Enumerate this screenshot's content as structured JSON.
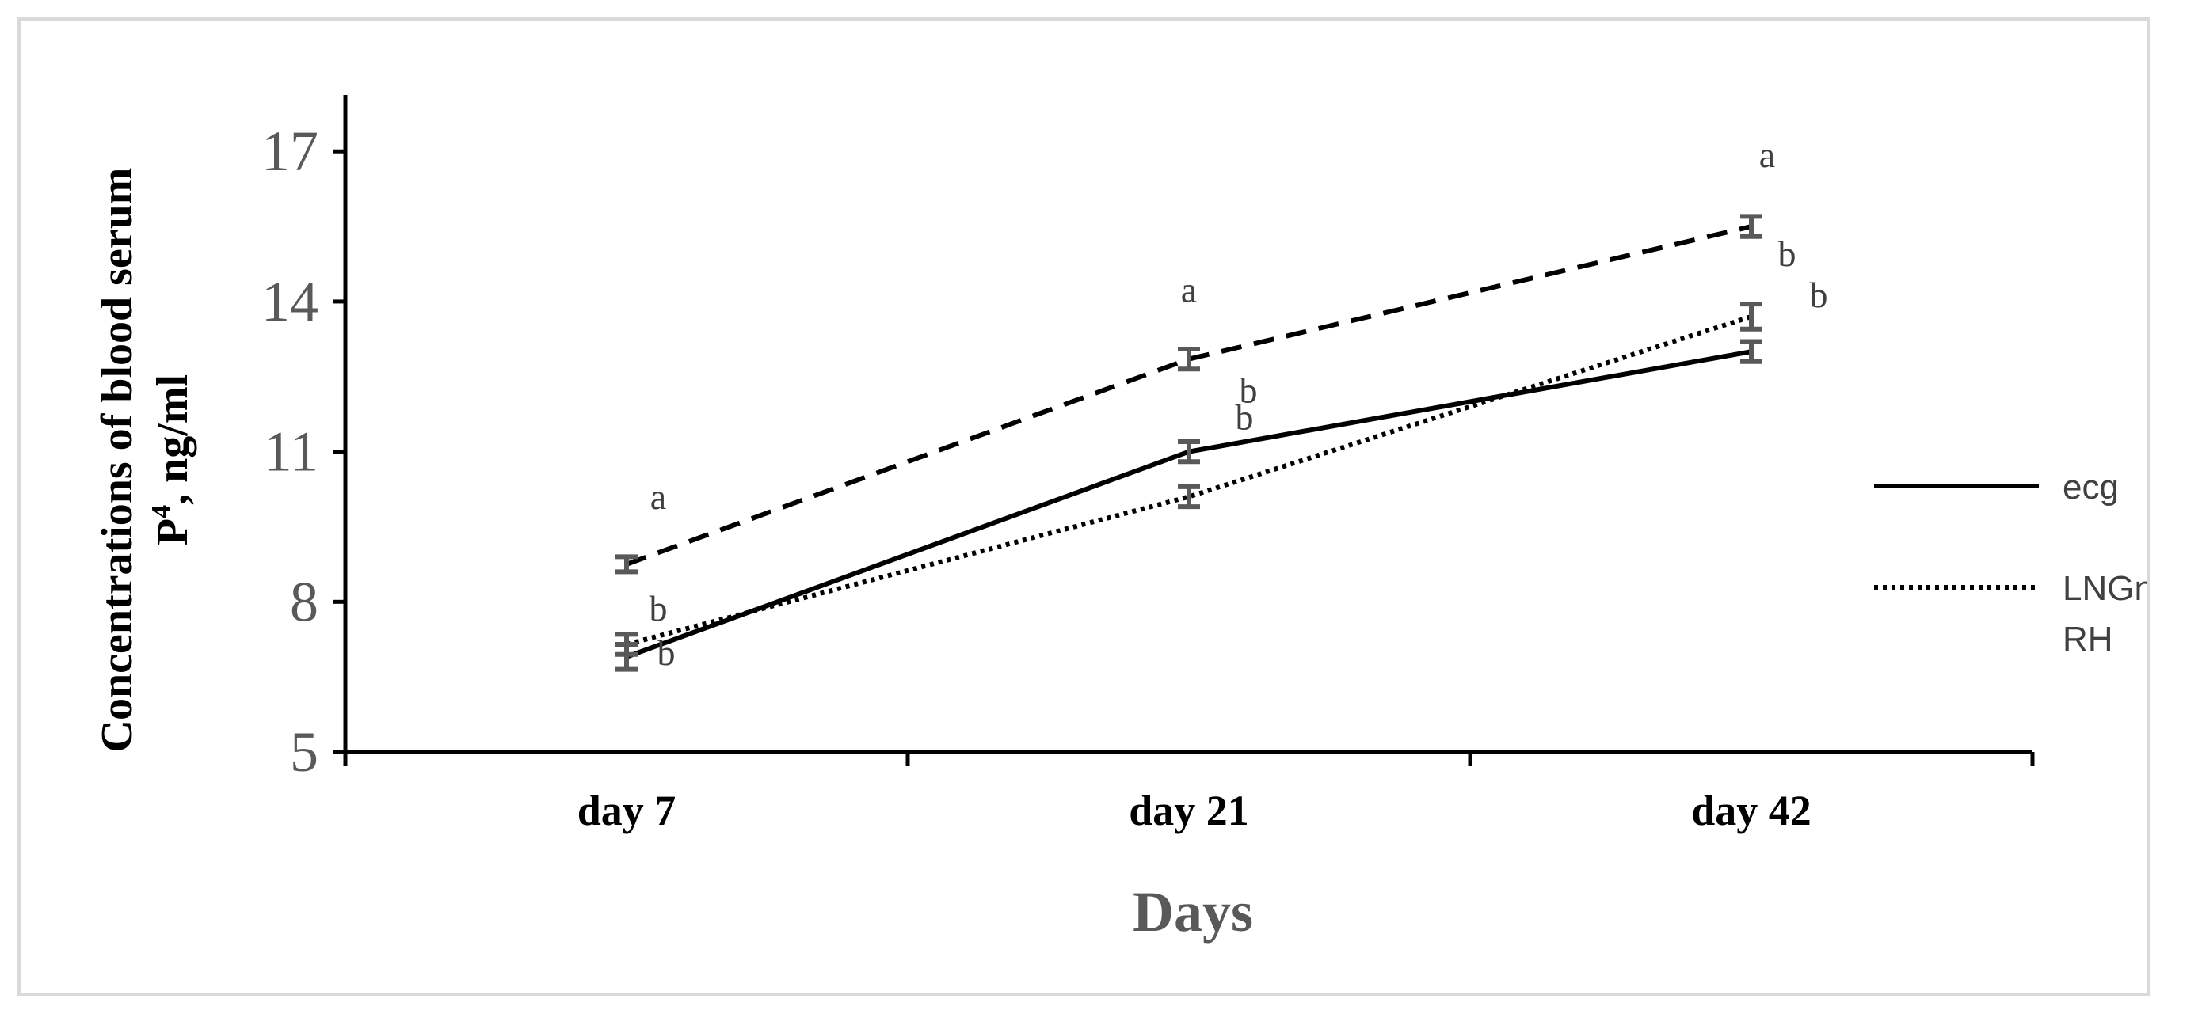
{
  "chart_data": {
    "type": "line",
    "title": "",
    "categories": [
      "day 7",
      "day 21",
      "day 42"
    ],
    "xlabel": "Days",
    "ylabel_line1": "Concentrations of blood serum",
    "ylabel_line2_prefix": "P",
    "ylabel_line2_sup": "4",
    "ylabel_line2_suffix": ", ng/ml",
    "ylim": [
      5,
      18
    ],
    "yticks": [
      5,
      8,
      11,
      14,
      17
    ],
    "series": [
      {
        "name": "ecg",
        "style": "solid",
        "values": [
          6.9,
          11.0,
          13.0
        ],
        "errors": [
          0.25,
          0.2,
          0.2
        ],
        "labels": [
          "b",
          "b",
          ""
        ]
      },
      {
        "name": "LNGnRH",
        "legend_lines": [
          "LNGn",
          "RH"
        ],
        "style": "dotted",
        "values": [
          7.15,
          10.1,
          13.7
        ],
        "errors": [
          0.2,
          0.2,
          0.25
        ],
        "labels": [
          "b",
          "",
          "b"
        ]
      },
      {
        "name": "",
        "style": "dashed",
        "values": [
          8.75,
          12.85,
          15.5
        ],
        "errors": [
          0.15,
          0.2,
          0.2
        ],
        "labels": [
          "a",
          "a",
          "a"
        ],
        "labels_secondary": [
          "",
          "b",
          "b"
        ]
      }
    ],
    "legend_position": "right",
    "colors": {
      "line": "#000000",
      "error_bar": "#595959",
      "text": "#595959",
      "border": "#d9d9d9"
    }
  }
}
